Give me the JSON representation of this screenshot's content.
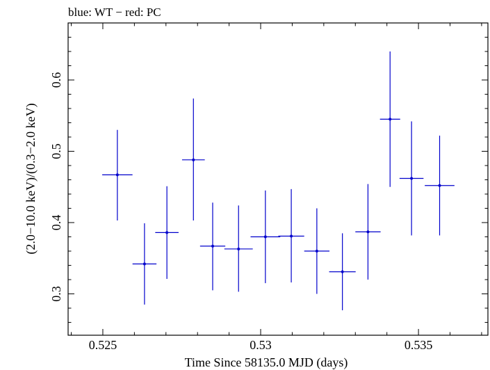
{
  "chart_data": {
    "type": "scatter",
    "title": "blue: WT − red: PC",
    "xlabel": "Time Since 58135.0 MJD (days)",
    "ylabel": "(2.0−10.0 keV)/(0.3−2.0 keV)",
    "xlim": [
      0.5239,
      0.5372
    ],
    "ylim": [
      0.242,
      0.68
    ],
    "x_ticks": [
      0.525,
      0.53,
      0.535
    ],
    "x_tick_labels": [
      "0.525",
      "0.53",
      "0.535"
    ],
    "y_ticks": [
      0.3,
      0.4,
      0.5,
      0.6
    ],
    "y_tick_labels": [
      "0.3",
      "0.4",
      "0.5",
      "0.6"
    ],
    "grid": false,
    "series": [
      {
        "name": "WT",
        "color": "#0000cc",
        "points": [
          {
            "x": 0.52546,
            "xerr": 0.00048,
            "y": 0.467,
            "yerr_low": 0.064,
            "yerr_high": 0.063
          },
          {
            "x": 0.52632,
            "xerr": 0.00038,
            "y": 0.342,
            "yerr_low": 0.057,
            "yerr_high": 0.057
          },
          {
            "x": 0.52703,
            "xerr": 0.00037,
            "y": 0.386,
            "yerr_low": 0.065,
            "yerr_high": 0.065
          },
          {
            "x": 0.52787,
            "xerr": 0.00036,
            "y": 0.488,
            "yerr_low": 0.085,
            "yerr_high": 0.086
          },
          {
            "x": 0.52848,
            "xerr": 0.0004,
            "y": 0.367,
            "yerr_low": 0.062,
            "yerr_high": 0.061
          },
          {
            "x": 0.5293,
            "xerr": 0.00045,
            "y": 0.363,
            "yerr_low": 0.06,
            "yerr_high": 0.061
          },
          {
            "x": 0.53015,
            "xerr": 0.00047,
            "y": 0.38,
            "yerr_low": 0.065,
            "yerr_high": 0.065
          },
          {
            "x": 0.53097,
            "xerr": 0.00041,
            "y": 0.381,
            "yerr_low": 0.065,
            "yerr_high": 0.066
          },
          {
            "x": 0.53178,
            "xerr": 0.0004,
            "y": 0.36,
            "yerr_low": 0.06,
            "yerr_high": 0.06
          },
          {
            "x": 0.53259,
            "xerr": 0.00042,
            "y": 0.331,
            "yerr_low": 0.054,
            "yerr_high": 0.054
          },
          {
            "x": 0.5334,
            "xerr": 0.0004,
            "y": 0.387,
            "yerr_low": 0.067,
            "yerr_high": 0.067
          },
          {
            "x": 0.5341,
            "xerr": 0.00032,
            "y": 0.545,
            "yerr_low": 0.095,
            "yerr_high": 0.095
          },
          {
            "x": 0.53478,
            "xerr": 0.00038,
            "y": 0.462,
            "yerr_low": 0.08,
            "yerr_high": 0.08
          },
          {
            "x": 0.53567,
            "xerr": 0.00047,
            "y": 0.452,
            "yerr_low": 0.07,
            "yerr_high": 0.07
          }
        ]
      }
    ]
  }
}
